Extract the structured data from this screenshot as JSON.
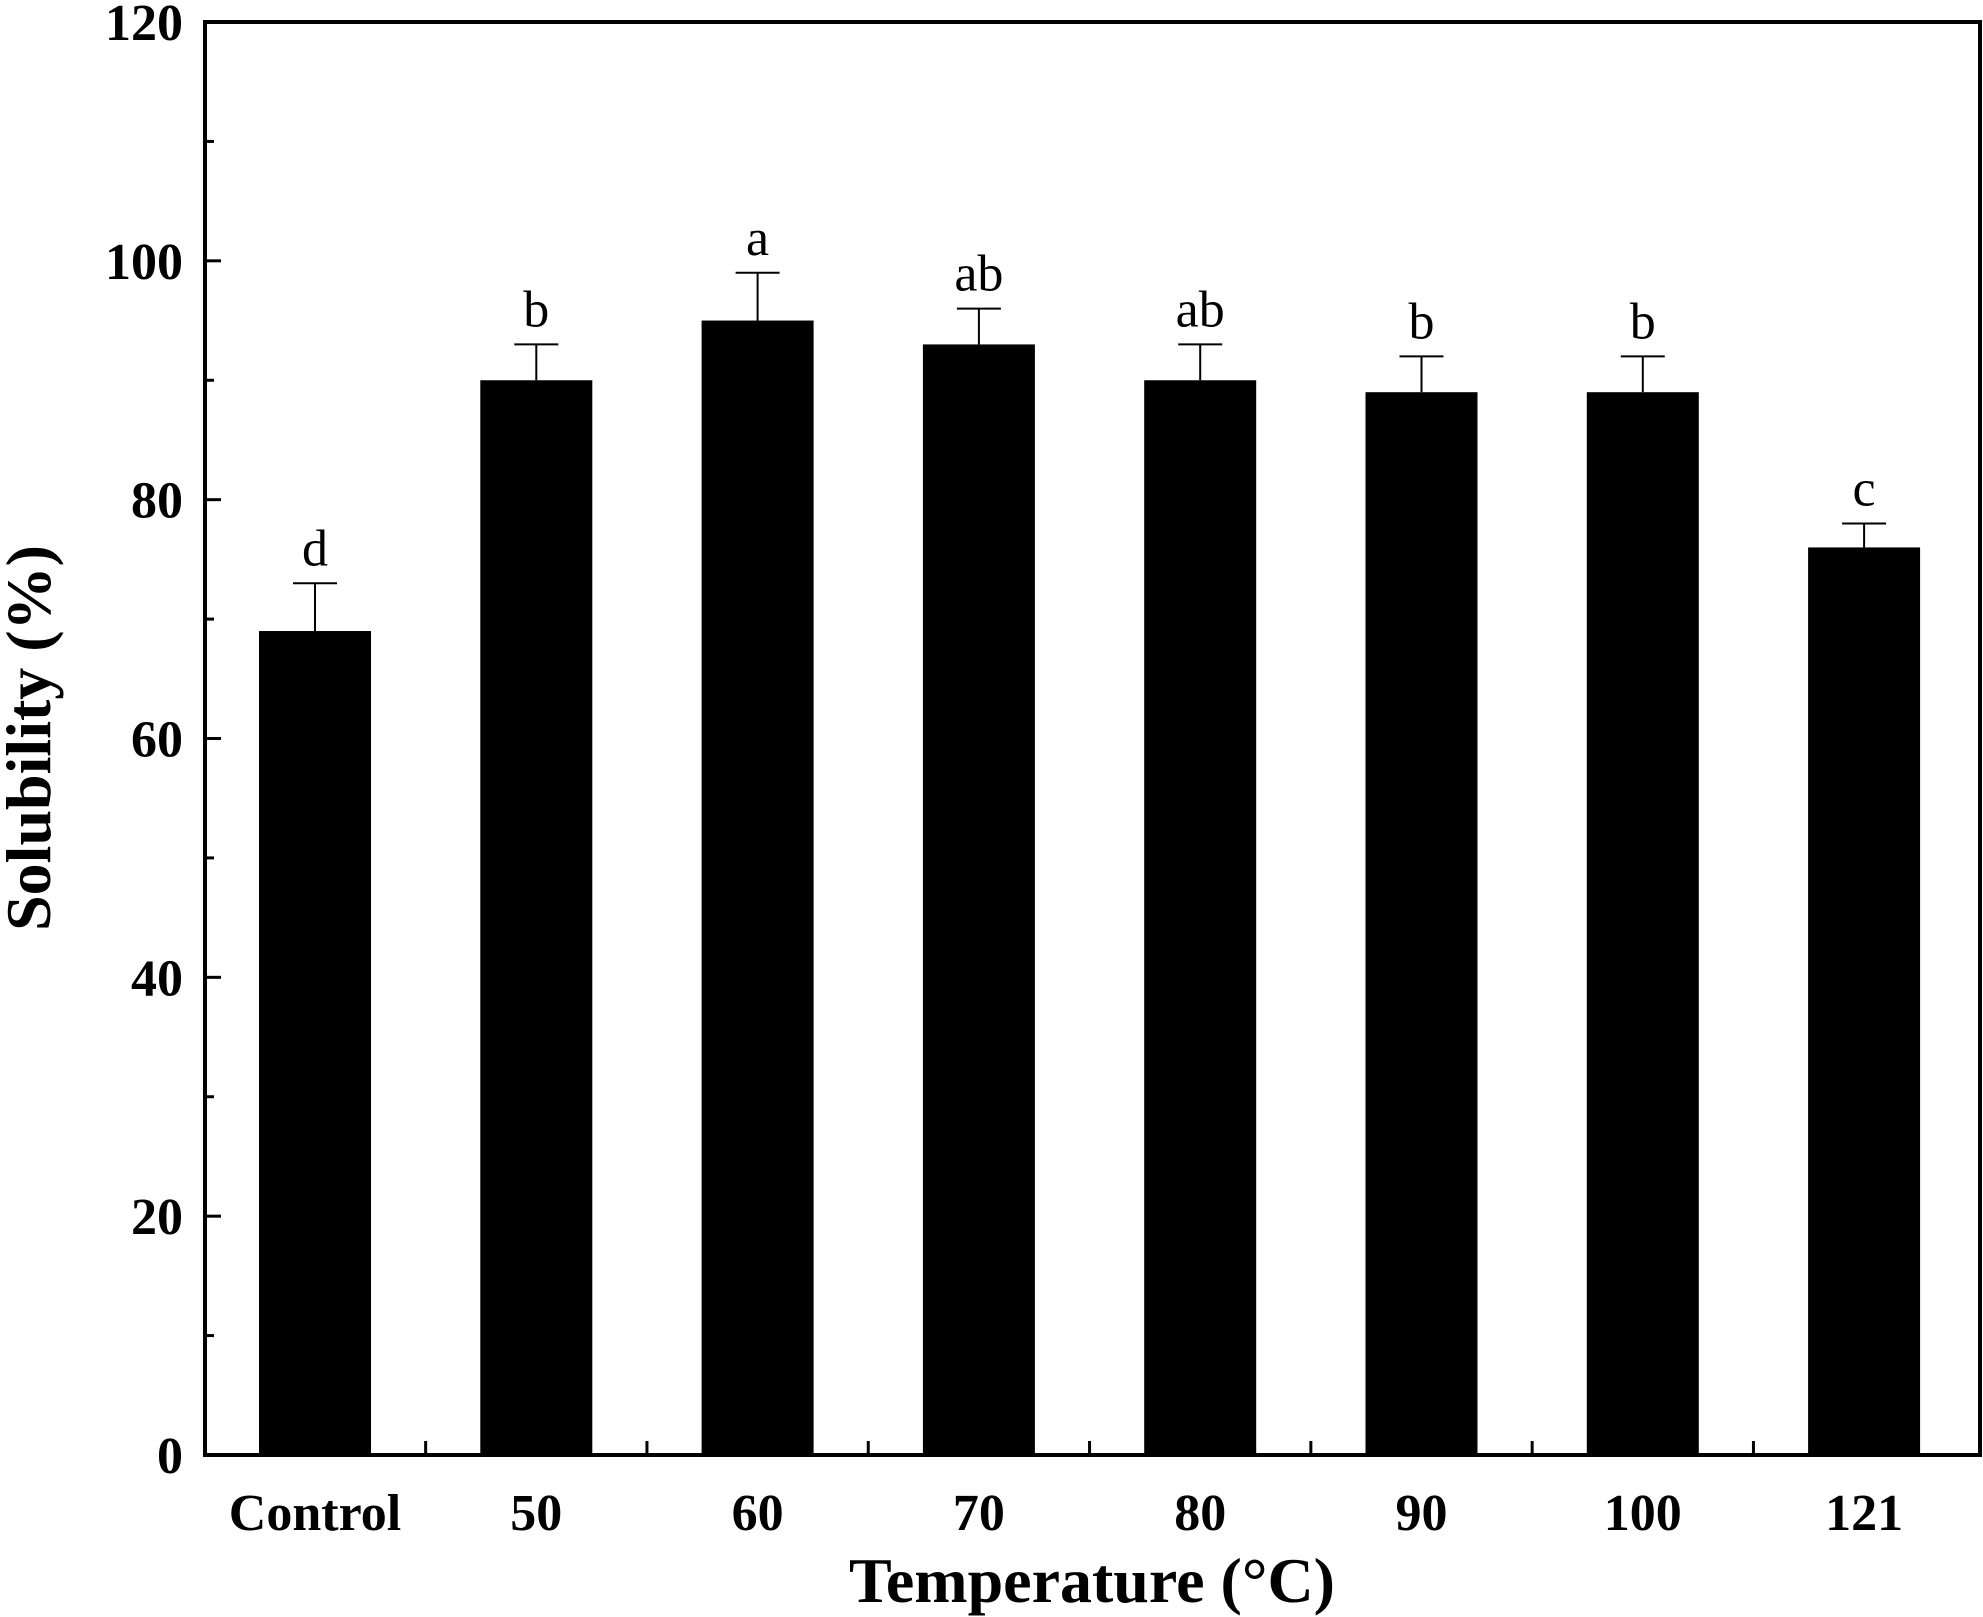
{
  "chart_data": {
    "type": "bar",
    "xlabel": "Temperature (°C)",
    "ylabel": "Solubility (%)",
    "categories": [
      "Control",
      "50",
      "60",
      "70",
      "80",
      "90",
      "100",
      "121"
    ],
    "values": [
      69,
      90,
      95,
      93,
      90,
      89,
      89,
      76
    ],
    "errors": [
      4,
      3,
      4,
      3,
      3,
      3,
      3,
      2
    ],
    "significance_labels": [
      "d",
      "b",
      "a",
      "ab",
      "ab",
      "b",
      "b",
      "c"
    ],
    "ylim": [
      0,
      120
    ],
    "yticks": [
      0,
      20,
      40,
      60,
      80,
      100,
      120
    ],
    "grid": false,
    "legend": "none",
    "bar_color": "#000000"
  }
}
